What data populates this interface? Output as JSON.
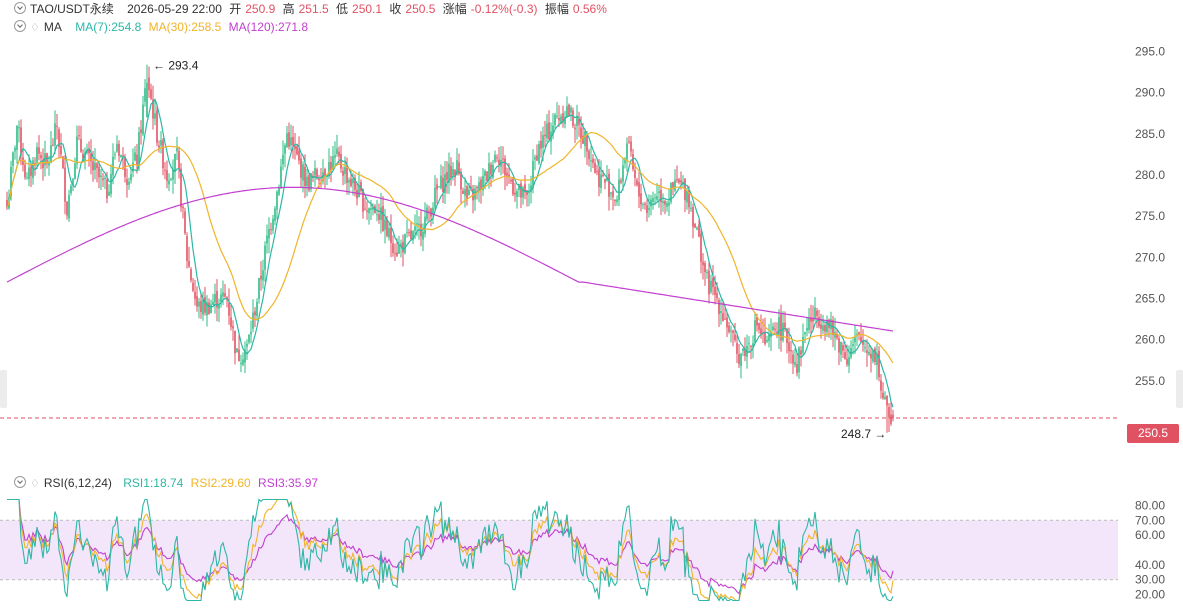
{
  "header": {
    "symbol": "TAO/USDT永续",
    "datetime": "2026-05-29 22:00",
    "open_label": "开",
    "open": "250.9",
    "high_label": "高",
    "high": "251.5",
    "low_label": "低",
    "low": "250.1",
    "close_label": "收",
    "close": "250.5",
    "change_label": "涨幅",
    "change": "-0.12%(-0.3)",
    "amp_label": "振幅",
    "amp": "0.56%"
  },
  "ma_legend": {
    "label": "MA",
    "ma7": "MA(7):254.8",
    "ma30": "MA(30):258.5",
    "ma120": "MA(120):271.8"
  },
  "rsi_legend": {
    "label": "RSI(6,12,24)",
    "rsi1": "RSI1:18.74",
    "rsi2": "RSI2:29.60",
    "rsi3": "RSI3:35.97"
  },
  "annotations": {
    "high": "293.4",
    "low": "248.7",
    "last_price": "250.5"
  },
  "colors": {
    "up": "#2ebd85",
    "down": "#e05162",
    "ma7": "#2db7a6",
    "ma30": "#f0b429",
    "ma120": "#c23fd0",
    "rsi1": "#2db7a6",
    "rsi2": "#f0b429",
    "rsi3": "#c23fd0",
    "rsi_band": "#f3e6fb"
  },
  "chart_data": [
    {
      "type": "candlestick",
      "ylim": [
        246,
        297
      ],
      "yticks": [
        255.0,
        260.0,
        265.0,
        270.0,
        275.0,
        280.0,
        285.0,
        290.0,
        295.0
      ],
      "ytick_labels": [
        "255.0",
        "260.0",
        "265.0",
        "270.0",
        "275.0",
        "280.0",
        "285.0",
        "290.0",
        "295.0"
      ],
      "close_trajectory": [
        [
          0,
          276
        ],
        [
          5,
          286
        ],
        [
          10,
          279
        ],
        [
          15,
          283
        ],
        [
          20,
          281
        ],
        [
          25,
          286
        ],
        [
          30,
          276
        ],
        [
          35,
          284
        ],
        [
          40,
          282
        ],
        [
          45,
          280
        ],
        [
          50,
          278
        ],
        [
          55,
          284
        ],
        [
          60,
          280
        ],
        [
          65,
          282
        ],
        [
          70,
          292
        ],
        [
          75,
          285
        ],
        [
          80,
          280
        ],
        [
          85,
          282
        ],
        [
          90,
          270
        ],
        [
          95,
          264
        ],
        [
          100,
          264
        ],
        [
          105,
          265
        ],
        [
          110,
          265
        ],
        [
          115,
          258
        ],
        [
          120,
          259
        ],
        [
          125,
          265
        ],
        [
          130,
          272
        ],
        [
          135,
          278
        ],
        [
          140,
          285
        ],
        [
          145,
          282
        ],
        [
          150,
          279
        ],
        [
          155,
          280
        ],
        [
          160,
          281
        ],
        [
          165,
          282
        ],
        [
          170,
          280
        ],
        [
          175,
          278
        ],
        [
          180,
          276
        ],
        [
          185,
          276
        ],
        [
          190,
          273
        ],
        [
          195,
          271
        ],
        [
          200,
          272
        ],
        [
          205,
          273
        ],
        [
          210,
          275
        ],
        [
          215,
          278
        ],
        [
          220,
          280
        ],
        [
          225,
          281
        ],
        [
          230,
          277
        ],
        [
          235,
          278
        ],
        [
          240,
          280
        ],
        [
          245,
          283
        ],
        [
          250,
          280
        ],
        [
          255,
          278
        ],
        [
          260,
          277
        ],
        [
          265,
          283
        ],
        [
          270,
          285
        ],
        [
          275,
          287
        ],
        [
          280,
          288
        ],
        [
          285,
          286
        ],
        [
          290,
          284
        ],
        [
          295,
          280
        ],
        [
          300,
          279
        ],
        [
          305,
          277
        ],
        [
          310,
          284
        ],
        [
          315,
          278
        ],
        [
          320,
          276
        ],
        [
          325,
          278
        ],
        [
          330,
          277
        ],
        [
          335,
          279
        ],
        [
          340,
          278
        ],
        [
          345,
          273
        ],
        [
          350,
          267
        ],
        [
          355,
          265
        ],
        [
          360,
          262
        ],
        [
          365,
          258
        ],
        [
          370,
          259
        ],
        [
          375,
          262
        ],
        [
          380,
          259
        ],
        [
          385,
          262
        ],
        [
          390,
          260
        ],
        [
          395,
          257
        ],
        [
          400,
          262
        ],
        [
          405,
          263
        ],
        [
          410,
          262
        ],
        [
          415,
          260
        ],
        [
          420,
          258
        ],
        [
          425,
          260
        ],
        [
          430,
          259
        ],
        [
          435,
          258
        ],
        [
          437,
          254
        ],
        [
          440,
          251
        ],
        [
          443,
          250.5
        ]
      ],
      "ma7": 254.8,
      "ma30": 258.5,
      "ma120": 271.8,
      "high": 293.4,
      "low": 248.7,
      "last": 250.5
    },
    {
      "type": "line",
      "ylim": [
        15,
        85
      ],
      "yticks": [
        20,
        30,
        40,
        60,
        70,
        80
      ],
      "ytick_labels": [
        "20.00",
        "30.00",
        "40.00",
        "60.00",
        "70.00",
        "80.00"
      ],
      "band": [
        30,
        70
      ],
      "series": [
        {
          "name": "RSI1",
          "last": 18.74
        },
        {
          "name": "RSI2",
          "last": 29.6
        },
        {
          "name": "RSI3",
          "last": 35.97
        }
      ]
    }
  ]
}
